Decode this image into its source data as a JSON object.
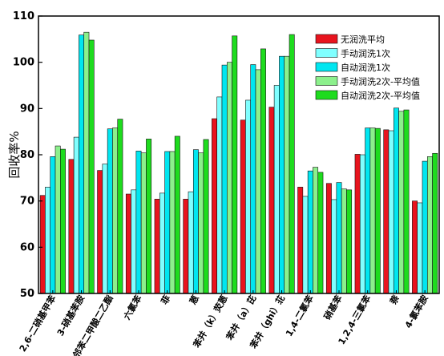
{
  "chart_data": {
    "type": "bar",
    "ylabel": "回收率%",
    "xlabel": "",
    "ylim": [
      50,
      110
    ],
    "yticks": [
      50,
      60,
      70,
      80,
      90,
      100,
      110
    ],
    "legend_position": "top-right",
    "grid": false,
    "categories": [
      "2,6-二硝基甲苯",
      "3-硝基苯胺",
      "邻苯二甲酸二乙酯",
      "六氯苯",
      "菲",
      "蒽",
      "苯并（k）荧蒽",
      "苯并（a）芘",
      "苯并（ghi）苝",
      "1,4-二氯苯",
      "硝基苯",
      "1,2,4-三氯苯",
      "萘",
      "4-氯苯胺"
    ],
    "series": [
      {
        "name": "无润洗平均",
        "color": "#e8141e",
        "values": [
          71.2,
          79.0,
          76.6,
          71.5,
          70.4,
          70.4,
          87.8,
          87.5,
          90.3,
          73.0,
          73.8,
          80.1,
          85.4,
          70.0
        ]
      },
      {
        "name": "手动润洗1次",
        "color": "#80ffff",
        "values": [
          73.0,
          83.8,
          78.0,
          72.4,
          71.7,
          72.0,
          92.5,
          91.8,
          95.0,
          71.0,
          70.3,
          80.0,
          85.2,
          69.6
        ]
      },
      {
        "name": "自动润洗1次",
        "color": "#00e6f0",
        "values": [
          79.6,
          105.9,
          85.6,
          80.8,
          80.7,
          81.1,
          99.4,
          99.5,
          101.3,
          76.5,
          74.0,
          85.8,
          90.1,
          78.6
        ]
      },
      {
        "name": "手动润洗2次-平均值",
        "color": "#8cf08c",
        "values": [
          81.9,
          106.5,
          85.8,
          80.4,
          80.7,
          80.4,
          100.0,
          98.4,
          101.3,
          77.3,
          72.6,
          85.8,
          89.4,
          79.6
        ]
      },
      {
        "name": "自动润洗2次-平均值",
        "color": "#1edc1e",
        "values": [
          81.2,
          104.8,
          87.7,
          83.4,
          84.0,
          83.3,
          105.7,
          102.9,
          106.0,
          76.2,
          72.4,
          85.7,
          89.7,
          80.3
        ]
      }
    ]
  }
}
